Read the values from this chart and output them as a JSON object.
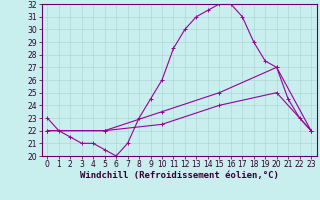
{
  "xlabel": "Windchill (Refroidissement éolien,°C)",
  "bg_color": "#c8eeee",
  "grid_color": "#b0d8d8",
  "line_color": "#990099",
  "x_ticks": [
    0,
    1,
    2,
    3,
    4,
    5,
    6,
    7,
    8,
    9,
    10,
    11,
    12,
    13,
    14,
    15,
    16,
    17,
    18,
    19,
    20,
    21,
    22,
    23
  ],
  "y_ticks": [
    20,
    21,
    22,
    23,
    24,
    25,
    26,
    27,
    28,
    29,
    30,
    31,
    32
  ],
  "xlim": [
    -0.5,
    23.5
  ],
  "ylim": [
    20,
    32
  ],
  "line1_x": [
    0,
    1,
    2,
    3,
    4,
    5,
    6,
    7,
    8,
    9,
    10,
    11,
    12,
    13,
    14,
    15,
    16,
    17,
    18,
    19,
    20,
    21,
    22,
    23
  ],
  "line1_y": [
    23,
    22,
    21.5,
    21,
    21,
    20.5,
    20,
    21,
    23,
    24.5,
    26,
    28.5,
    30,
    31,
    31.5,
    32,
    32,
    31,
    29,
    27.5,
    27,
    24.5,
    23,
    22
  ],
  "line2_x": [
    0,
    5,
    10,
    15,
    20,
    23
  ],
  "line2_y": [
    22,
    22,
    23.5,
    25,
    27,
    22
  ],
  "line3_x": [
    0,
    5,
    10,
    15,
    20,
    23
  ],
  "line3_y": [
    22,
    22,
    22.5,
    24,
    25,
    22
  ],
  "marker": "+",
  "markersize": 3,
  "linewidth": 0.8,
  "tick_fontsize": 5.5,
  "xlabel_fontsize": 6.5
}
